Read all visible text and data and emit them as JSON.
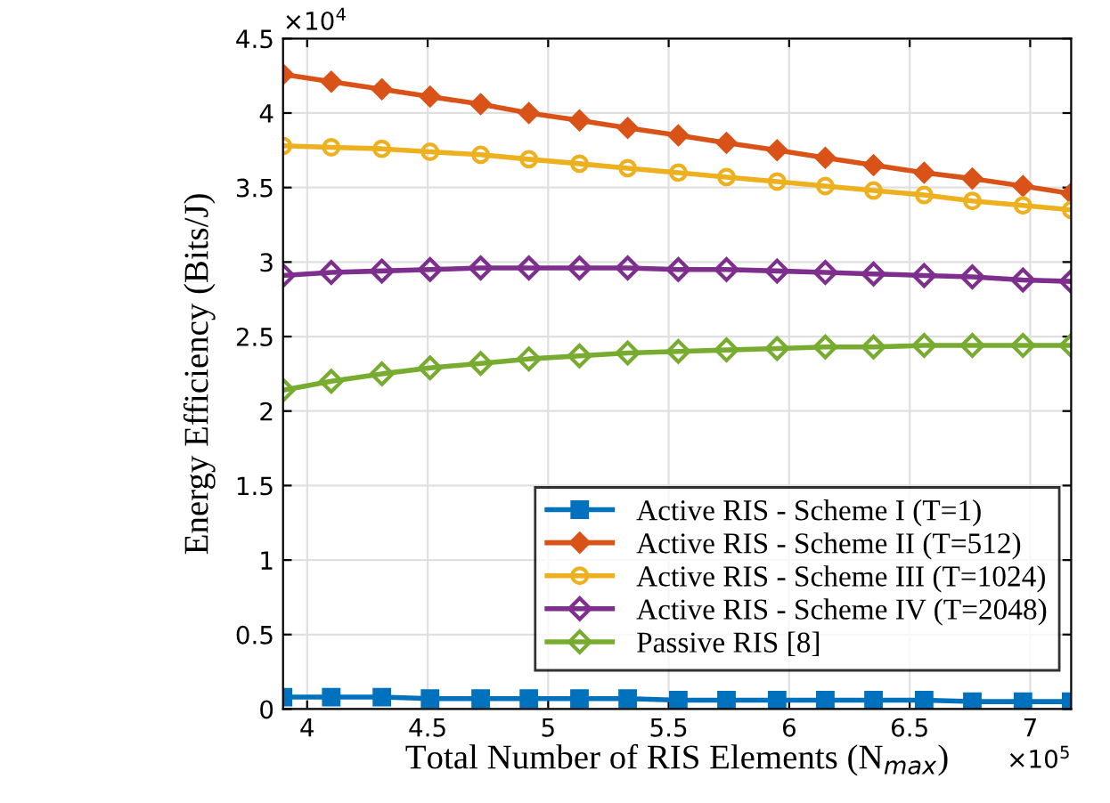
{
  "chart_data": {
    "type": "line",
    "xlabel": "Total Number of RIS Elements (N$_{max}$)",
    "ylabel": "Energy Efficiency (Bits/J)",
    "annotations": [
      "×10$^{4}$",
      "×10$^{5}$"
    ],
    "x": [
      3.9,
      4.1,
      4.31,
      4.51,
      4.72,
      4.92,
      5.13,
      5.33,
      5.54,
      5.74,
      5.95,
      6.15,
      6.35,
      6.56,
      6.76,
      6.97,
      7.17
    ],
    "xlim": [
      3.9,
      7.17
    ],
    "xticks": [
      4,
      4.5,
      5,
      5.5,
      6,
      6.5,
      7
    ],
    "ylim": [
      0,
      4.5
    ],
    "yticks": [
      0,
      0.5,
      1,
      1.5,
      2,
      2.5,
      3,
      3.5,
      4,
      4.5
    ],
    "grid": true,
    "legend": "bottom right",
    "series": [
      {
        "name": "Active RIS - Scheme I (T=1)",
        "color": "#0072bd",
        "marker": "square",
        "values": [
          0.08,
          0.08,
          0.08,
          0.07,
          0.07,
          0.07,
          0.07,
          0.07,
          0.06,
          0.06,
          0.06,
          0.06,
          0.06,
          0.06,
          0.05,
          0.05,
          0.05
        ]
      },
      {
        "name": "Active RIS - Scheme II (T=512)",
        "color": "#d95319",
        "marker": "diamond",
        "values": [
          4.26,
          4.21,
          4.16,
          4.11,
          4.06,
          4.0,
          3.95,
          3.9,
          3.85,
          3.8,
          3.75,
          3.7,
          3.65,
          3.6,
          3.56,
          3.51,
          3.46
        ]
      },
      {
        "name": "Active RIS - Scheme III (T=1024)",
        "color": "#edb120",
        "marker": "circle",
        "values": [
          3.78,
          3.77,
          3.76,
          3.74,
          3.72,
          3.69,
          3.66,
          3.63,
          3.6,
          3.57,
          3.54,
          3.51,
          3.48,
          3.45,
          3.41,
          3.38,
          3.35
        ]
      },
      {
        "name": "Active RIS - Scheme IV (T=2048)",
        "color": "#7e2f8e",
        "marker": "diamond",
        "values": [
          2.91,
          2.93,
          2.94,
          2.95,
          2.96,
          2.96,
          2.96,
          2.96,
          2.95,
          2.95,
          2.94,
          2.93,
          2.92,
          2.91,
          2.9,
          2.88,
          2.87
        ]
      },
      {
        "name": "Passive RIS [8]",
        "color": "#77ac30",
        "marker": "diamond",
        "values": [
          2.14,
          2.2,
          2.25,
          2.29,
          2.32,
          2.35,
          2.37,
          2.39,
          2.4,
          2.41,
          2.42,
          2.43,
          2.43,
          2.44,
          2.44,
          2.44,
          2.44
        ]
      }
    ]
  }
}
